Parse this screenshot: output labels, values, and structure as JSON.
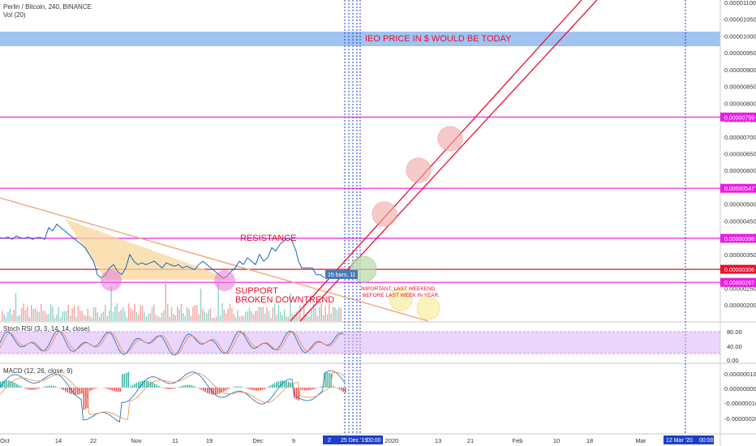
{
  "header": {
    "symbol_title": "Perlin / Bitcoin, 240, BINANCE",
    "volume_label": "Vol (20)"
  },
  "price_axis": {
    "ticks": [
      "0.00001100",
      "0.00001050",
      "0.00001000",
      "0.00000950",
      "0.00000900",
      "0.00000850",
      "0.00000800",
      "0.00000750",
      "0.00000700",
      "0.00000650",
      "0.00000600",
      "0.00000550",
      "0.00000500",
      "0.00000450",
      "0.00000400",
      "0.00000350",
      "0.00000300",
      "0.00000250",
      "0.00000200"
    ],
    "markers": [
      {
        "label": "0.00000759",
        "color": "#e91ee0"
      },
      {
        "label": "0.00000547",
        "color": "#e91ee0"
      },
      {
        "label": "0.00000398",
        "color": "#e91ee0"
      },
      {
        "label": "0.00000306",
        "color": "#e8102c"
      },
      {
        "label": "0.00000267",
        "color": "#e91ee0"
      }
    ]
  },
  "time_axis": {
    "ticks": [
      "Oct",
      "14",
      "22",
      "Nov",
      "11",
      "19",
      "Dec",
      "9",
      "2020",
      "13",
      "21",
      "Feb",
      "10",
      "18",
      "Mar"
    ],
    "highlight_left": "2",
    "highlight_mid": "25 Dec '19",
    "highlight_time": "00:00",
    "highlight_right": "12 Mar '20",
    "highlight_right_time": "00:00"
  },
  "annotations": {
    "ieo_text": "IEO PRICE IN $ WOULD BE TODAY",
    "resistance": "RESISTANCE",
    "support": "SUPPORT",
    "broken": "BROKEN DOWNTREND",
    "important_1": "IMPORTANT, LAST WEEKEND",
    "important_2": "BEFORE LAST WEEK IN YEAR.",
    "bars_box": "15 bars, 11"
  },
  "stoch_rsi": {
    "label": "Stoch RSI (3, 3, 14, 14, close)",
    "ticks": [
      "80.00",
      "40.00",
      "0.00"
    ]
  },
  "macd": {
    "label": "MACD (12, 26, close, 9)",
    "ticks": [
      "0.00000010",
      "0.00000000",
      "-0.00000010",
      "-0.00000020"
    ]
  },
  "chart_data": {
    "type": "line",
    "title": "Perlin / Bitcoin, 240, BINANCE",
    "price_range": [
      1.7e-06,
      1.1e-05
    ],
    "price_path": [
      [
        0,
        4e-06
      ],
      [
        5,
        3.98e-06
      ],
      [
        10,
        4.02e-06
      ],
      [
        15,
        3.95e-06
      ],
      [
        20,
        4.05e-06
      ],
      [
        25,
        4e-06
      ],
      [
        30,
        3.98e-06
      ],
      [
        35,
        4.02e-06
      ],
      [
        40,
        3.95e-06
      ],
      [
        45,
        4e-06
      ],
      [
        50,
        4.01e-06
      ],
      [
        55,
        3.95e-06
      ],
      [
        60,
        4.3e-06
      ],
      [
        65,
        4.2e-06
      ],
      [
        70,
        4.4e-06
      ],
      [
        75,
        4.3e-06
      ],
      [
        80,
        4.2e-06
      ],
      [
        85,
        4.1e-06
      ],
      [
        90,
        4e-06
      ],
      [
        95,
        3.9e-06
      ],
      [
        100,
        3.8e-06
      ],
      [
        105,
        3.7e-06
      ],
      [
        110,
        3.5e-06
      ],
      [
        115,
        3.3e-06
      ],
      [
        118,
        3.1e-06
      ],
      [
        120,
        2.9e-06
      ],
      [
        125,
        2.8e-06
      ],
      [
        130,
        2.9e-06
      ],
      [
        135,
        3.1e-06
      ],
      [
        140,
        3.2e-06
      ],
      [
        145,
        3e-06
      ],
      [
        150,
        2.9e-06
      ],
      [
        155,
        3.1e-06
      ],
      [
        160,
        3.5e-06
      ],
      [
        165,
        3.3e-06
      ],
      [
        170,
        3.2e-06
      ],
      [
        175,
        3.25e-06
      ],
      [
        180,
        3.2e-06
      ],
      [
        185,
        3.25e-06
      ],
      [
        190,
        3.3e-06
      ],
      [
        195,
        3.2e-06
      ],
      [
        200,
        3.1e-06
      ],
      [
        205,
        3.25e-06
      ],
      [
        210,
        3.2e-06
      ],
      [
        215,
        3.15e-06
      ],
      [
        220,
        3.2e-06
      ],
      [
        225,
        3.1e-06
      ],
      [
        230,
        3.15e-06
      ],
      [
        235,
        3.1e-06
      ],
      [
        240,
        3.05e-06
      ],
      [
        245,
        3.2e-06
      ],
      [
        250,
        3.3e-06
      ],
      [
        255,
        3.2e-06
      ],
      [
        260,
        3.1e-06
      ],
      [
        265,
        3e-06
      ],
      [
        270,
        2.9e-06
      ],
      [
        275,
        2.8e-06
      ],
      [
        280,
        2.85e-06
      ],
      [
        285,
        3e-06
      ],
      [
        290,
        3.1e-06
      ],
      [
        295,
        3.3e-06
      ],
      [
        300,
        3.2e-06
      ],
      [
        305,
        3.4e-06
      ],
      [
        310,
        3.3e-06
      ],
      [
        315,
        3.2e-06
      ],
      [
        320,
        3.5e-06
      ],
      [
        325,
        3.3e-06
      ],
      [
        330,
        3.4e-06
      ],
      [
        335,
        3.7e-06
      ],
      [
        340,
        3.6e-06
      ],
      [
        345,
        3.8e-06
      ],
      [
        350,
        3.9e-06
      ],
      [
        355,
        4e-06
      ],
      [
        360,
        3.9e-06
      ],
      [
        365,
        3.6e-06
      ],
      [
        368,
        3.3e-06
      ],
      [
        372,
        3.1e-06
      ],
      [
        378,
        3.1e-06
      ],
      [
        385,
        3.1e-06
      ],
      [
        390,
        2.9e-06
      ],
      [
        395,
        2.9e-06
      ],
      [
        400,
        2.8e-06
      ]
    ],
    "horizontal_levels": [
      {
        "value": 7.59e-06,
        "color": "#e91ee0"
      },
      {
        "value": 5.47e-06,
        "color": "#e91ee0"
      },
      {
        "value": 3.98e-06,
        "color": "#e91ee0"
      },
      {
        "value": 3.06e-06,
        "color": "#e8102c"
      },
      {
        "value": 2.67e-06,
        "color": "#e91ee0"
      }
    ],
    "ieo_band": [
      9.8e-06,
      1.01e-05
    ],
    "colors": {
      "price": "#1565c0",
      "fill": "#f8d79a",
      "trend": "#f0a87b",
      "level": "#e91ee0",
      "red": "#e8102c",
      "band": "#8fb8f0",
      "vline": "#1e40c8",
      "stoch": "#d9b3f7"
    }
  }
}
